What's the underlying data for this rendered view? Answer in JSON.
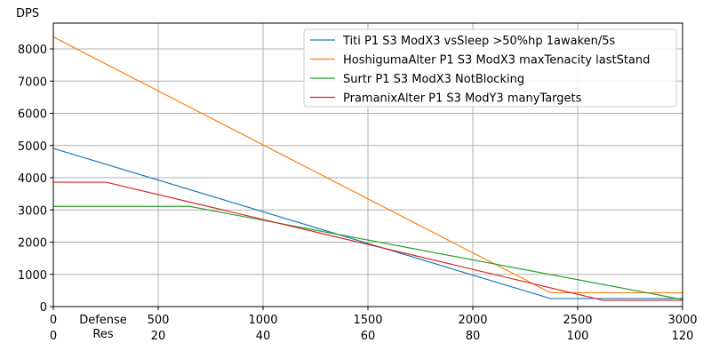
{
  "chart_data": {
    "type": "line",
    "title": "",
    "ylabel": "DPS",
    "xlabel_lines": [
      "Defense",
      "Res"
    ],
    "xlim": [
      0,
      3000
    ],
    "ylim": [
      0,
      8800
    ],
    "grid": true,
    "legend_position": "top-right",
    "x_ticks": [
      0,
      500,
      1000,
      1500,
      2000,
      2500,
      3000
    ],
    "x_tick_labels": [
      "0",
      "500",
      "1000",
      "1500",
      "2000",
      "2500",
      "3000"
    ],
    "x2_tick_labels": [
      "0",
      "20",
      "40",
      "60",
      "80",
      "100",
      "120"
    ],
    "y_ticks": [
      0,
      1000,
      2000,
      3000,
      4000,
      5000,
      6000,
      7000,
      8000
    ],
    "y_tick_labels": [
      "0",
      "1000",
      "2000",
      "3000",
      "4000",
      "5000",
      "6000",
      "7000",
      "8000"
    ],
    "series": [
      {
        "name": "Titi P1 S3 ModX3 vsSleep >50%hp 1awaken/5s",
        "color": "#1f77b4",
        "x": [
          0,
          2370,
          3000
        ],
        "y": [
          4910,
          250,
          250
        ]
      },
      {
        "name": "HoshigumaAlter P1 S3 ModX3 maxTenacity lastStand",
        "color": "#ff7f0e",
        "x": [
          0,
          2370,
          3000
        ],
        "y": [
          8370,
          430,
          430
        ]
      },
      {
        "name": "Surtr P1 S3 ModX3 NotBlocking",
        "color": "#2ca02c",
        "x": [
          0,
          650,
          3000
        ],
        "y": [
          3110,
          3110,
          220
        ]
      },
      {
        "name": "PramanixAlter P1 S3 ModY3 manyTargets",
        "color": "#d62728",
        "x": [
          0,
          252,
          2620,
          3000
        ],
        "y": [
          3860,
          3860,
          195,
          195
        ]
      }
    ]
  }
}
